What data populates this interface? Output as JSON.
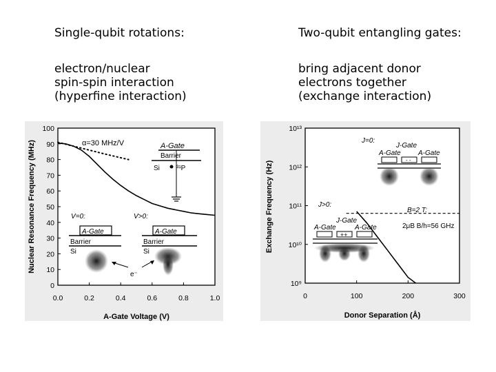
{
  "left": {
    "title": "Single-qubit rotations:",
    "description": "electron/nuclear\nspin-spin interaction\n(hyperfine interaction)"
  },
  "right": {
    "title": "Two-qubit entangling gates:",
    "description": "bring adjacent donor\nelectrons together\n(exchange interaction)"
  },
  "figures": {
    "left": {
      "ylabel": "Nuclear Resonance Frequency (MHz)",
      "xlabel": "A-Gate Voltage (V)",
      "alpha_label": "α=30 MHz/V",
      "gate_label": "A-Gate",
      "barrier_label": "Barrier",
      "si_label": "Si",
      "p_label": "³¹P",
      "v0_label": "V=0:",
      "vgt0_label": "V>0:",
      "e_label": "e⁻"
    },
    "right": {
      "ylabel": "Exchange Frequency (Hz)",
      "xlabel": "Donor Separation (Å)",
      "j0_label": "J=0:",
      "jgt0_label": "J>0:",
      "jgate_label": "J-Gate",
      "agate_label": "A-Gate",
      "b_label": "B=2 T:",
      "mu_label": "2μB B/h=56 GHz",
      "minus_label": "- -",
      "plus_label": "++"
    }
  },
  "chart_data": [
    {
      "type": "line",
      "xlabel": "A-Gate Voltage (V)",
      "ylabel": "Nuclear Resonance Frequency (MHz)",
      "xlim": [
        0.0,
        1.0
      ],
      "ylim": [
        0,
        100
      ],
      "xticks": [
        "0.0",
        "0.2",
        "0.4",
        "0.6",
        "0.8",
        "1.0"
      ],
      "yticks": [
        "0",
        "10",
        "20",
        "30",
        "40",
        "50",
        "60",
        "70",
        "80",
        "90",
        "100"
      ],
      "series": [
        {
          "x": [
            0.0,
            0.05,
            0.1,
            0.15,
            0.2,
            0.25,
            0.3,
            0.35,
            0.4,
            0.45,
            0.5,
            0.55,
            0.6,
            0.65,
            0.7,
            0.75,
            0.8,
            0.85,
            0.9,
            0.95,
            1.0
          ],
          "values": [
            90.5,
            90.0,
            88.5,
            86.0,
            82.0,
            77.0,
            72.0,
            67.5,
            63.5,
            60.0,
            57.0,
            54.5,
            52.0,
            50.5,
            49.0,
            48.0,
            47.0,
            46.0,
            45.5,
            45.0,
            44.5
          ]
        },
        {
          "x": [
            0.0,
            0.1,
            0.2,
            0.3,
            0.45
          ],
          "values": [
            91.0,
            88.5,
            86.0,
            83.5,
            80.0
          ],
          "style": "dotted"
        }
      ]
    },
    {
      "type": "line",
      "xlabel": "Donor Separation (Å)",
      "ylabel": "Exchange Frequency (Hz)",
      "xlim": [
        0,
        300
      ],
      "ylim": [
        9,
        13
      ],
      "log_y": true,
      "xticks": [
        "0",
        "100",
        "200",
        "300"
      ],
      "yticks": [
        "10⁹",
        "10¹⁰",
        "10¹¹",
        "10¹²",
        "10¹³"
      ],
      "series": [
        {
          "x": [
            100,
            120,
            140,
            160,
            180,
            200,
            215
          ],
          "values": [
            10.85,
            10.55,
            10.2,
            9.85,
            9.5,
            9.15,
            9.0
          ]
        },
        {
          "x": [
            80,
            300
          ],
          "values": [
            10.8,
            10.8
          ],
          "style": "dashed"
        }
      ]
    }
  ]
}
